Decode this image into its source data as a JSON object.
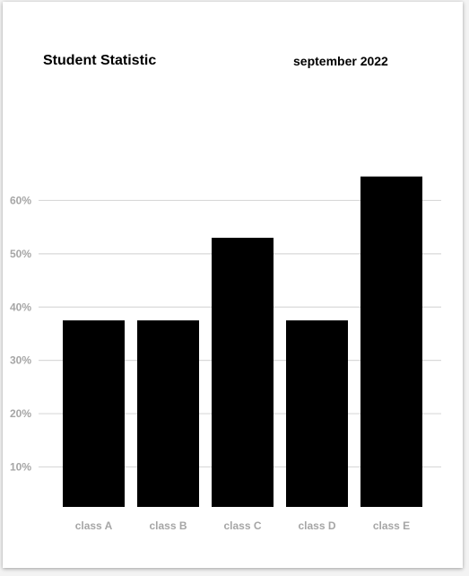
{
  "header": {
    "title": "Student Statistic",
    "date": "september 2022"
  },
  "chart_data": {
    "type": "bar",
    "title": "Student Statistic",
    "subtitle": "september 2022",
    "xlabel": "",
    "ylabel": "",
    "categories": [
      "class A",
      "class B",
      "class C",
      "class D",
      "class E"
    ],
    "values": [
      37.5,
      37.5,
      53,
      37.5,
      64.5
    ],
    "yticks": [
      10,
      20,
      30,
      40,
      50,
      60
    ],
    "ytick_labels": [
      "10%",
      "20%",
      "30%",
      "40%",
      "50%",
      "60%"
    ],
    "ylim": [
      2.5,
      70
    ],
    "grid": true,
    "bar_color": "#000000",
    "grid_color": "#d9d9d9",
    "label_color": "#a6a6a6"
  }
}
